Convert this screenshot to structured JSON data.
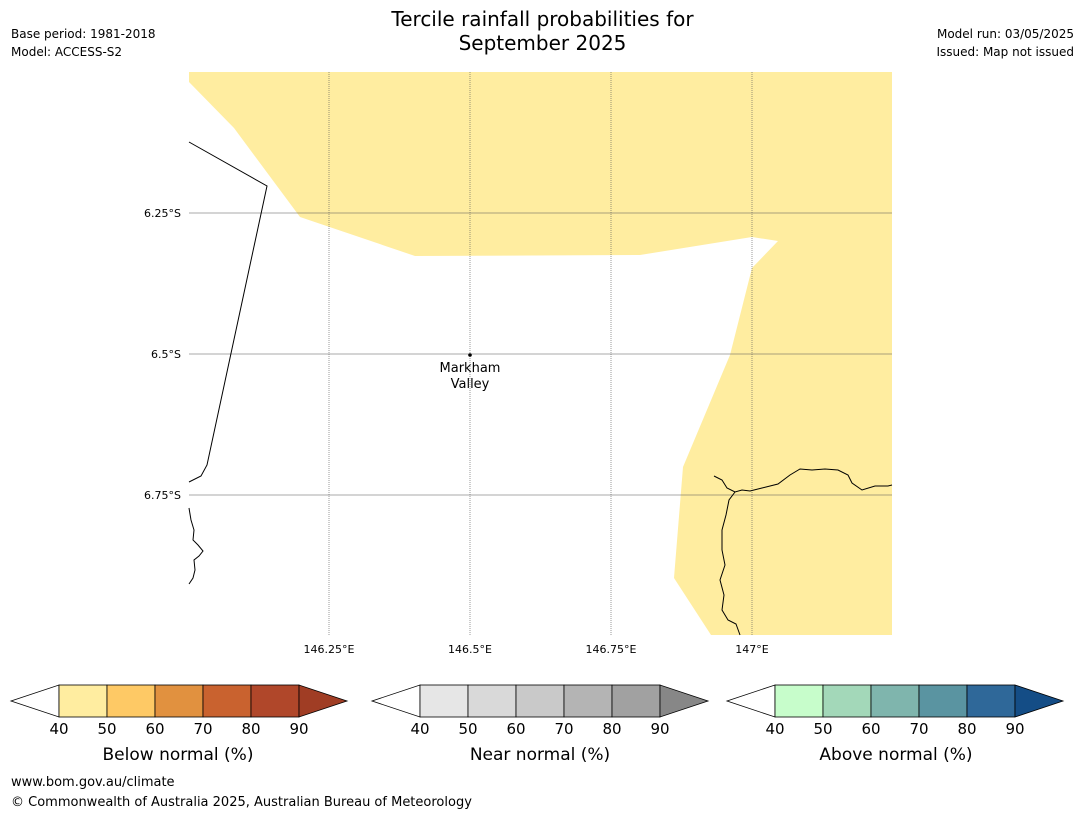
{
  "title_line1": "Tercile rainfall probabilities for",
  "title_line2": "September 2025",
  "meta_left": [
    "Base period: 1981-2018",
    "Model: ACCESS-S2"
  ],
  "meta_right": [
    "Model run: 03/05/2025",
    "Issued: Map not issued"
  ],
  "map": {
    "lat_labels": [
      "6.25°S",
      "6.5°S",
      "6.75°S"
    ],
    "lon_labels": [
      "146.25°E",
      "146.5°E",
      "146.75°E",
      "147°E"
    ],
    "place": {
      "name_line1": "Markham",
      "name_line2": "Valley"
    },
    "fill_color": "#ffeda0"
  },
  "colorbars": [
    {
      "label": "Below normal (%)",
      "ticks": [
        "40",
        "50",
        "60",
        "70",
        "80",
        "90"
      ],
      "colors": [
        "#ffeda0",
        "#fec965",
        "#e1913f",
        "#c9622f",
        "#b0472a"
      ],
      "extend": "#a03d24"
    },
    {
      "label": "Near normal (%)",
      "ticks": [
        "40",
        "50",
        "60",
        "70",
        "80",
        "90"
      ],
      "colors": [
        "#e6e6e6",
        "#d9d9d9",
        "#c9c9c9",
        "#b4b4b4",
        "#a1a1a1"
      ],
      "extend": "#878787"
    },
    {
      "label": "Above normal (%)",
      "ticks": [
        "40",
        "50",
        "60",
        "70",
        "80",
        "90"
      ],
      "colors": [
        "#c7fdcb",
        "#a3d8b9",
        "#7fb5ad",
        "#5a94a1",
        "#2f6899"
      ],
      "extend": "#144d86"
    }
  ],
  "footer": {
    "url": "www.bom.gov.au/climate",
    "copyright": "© Commonwealth of Australia 2025, Australian Bureau of Meteorology"
  }
}
